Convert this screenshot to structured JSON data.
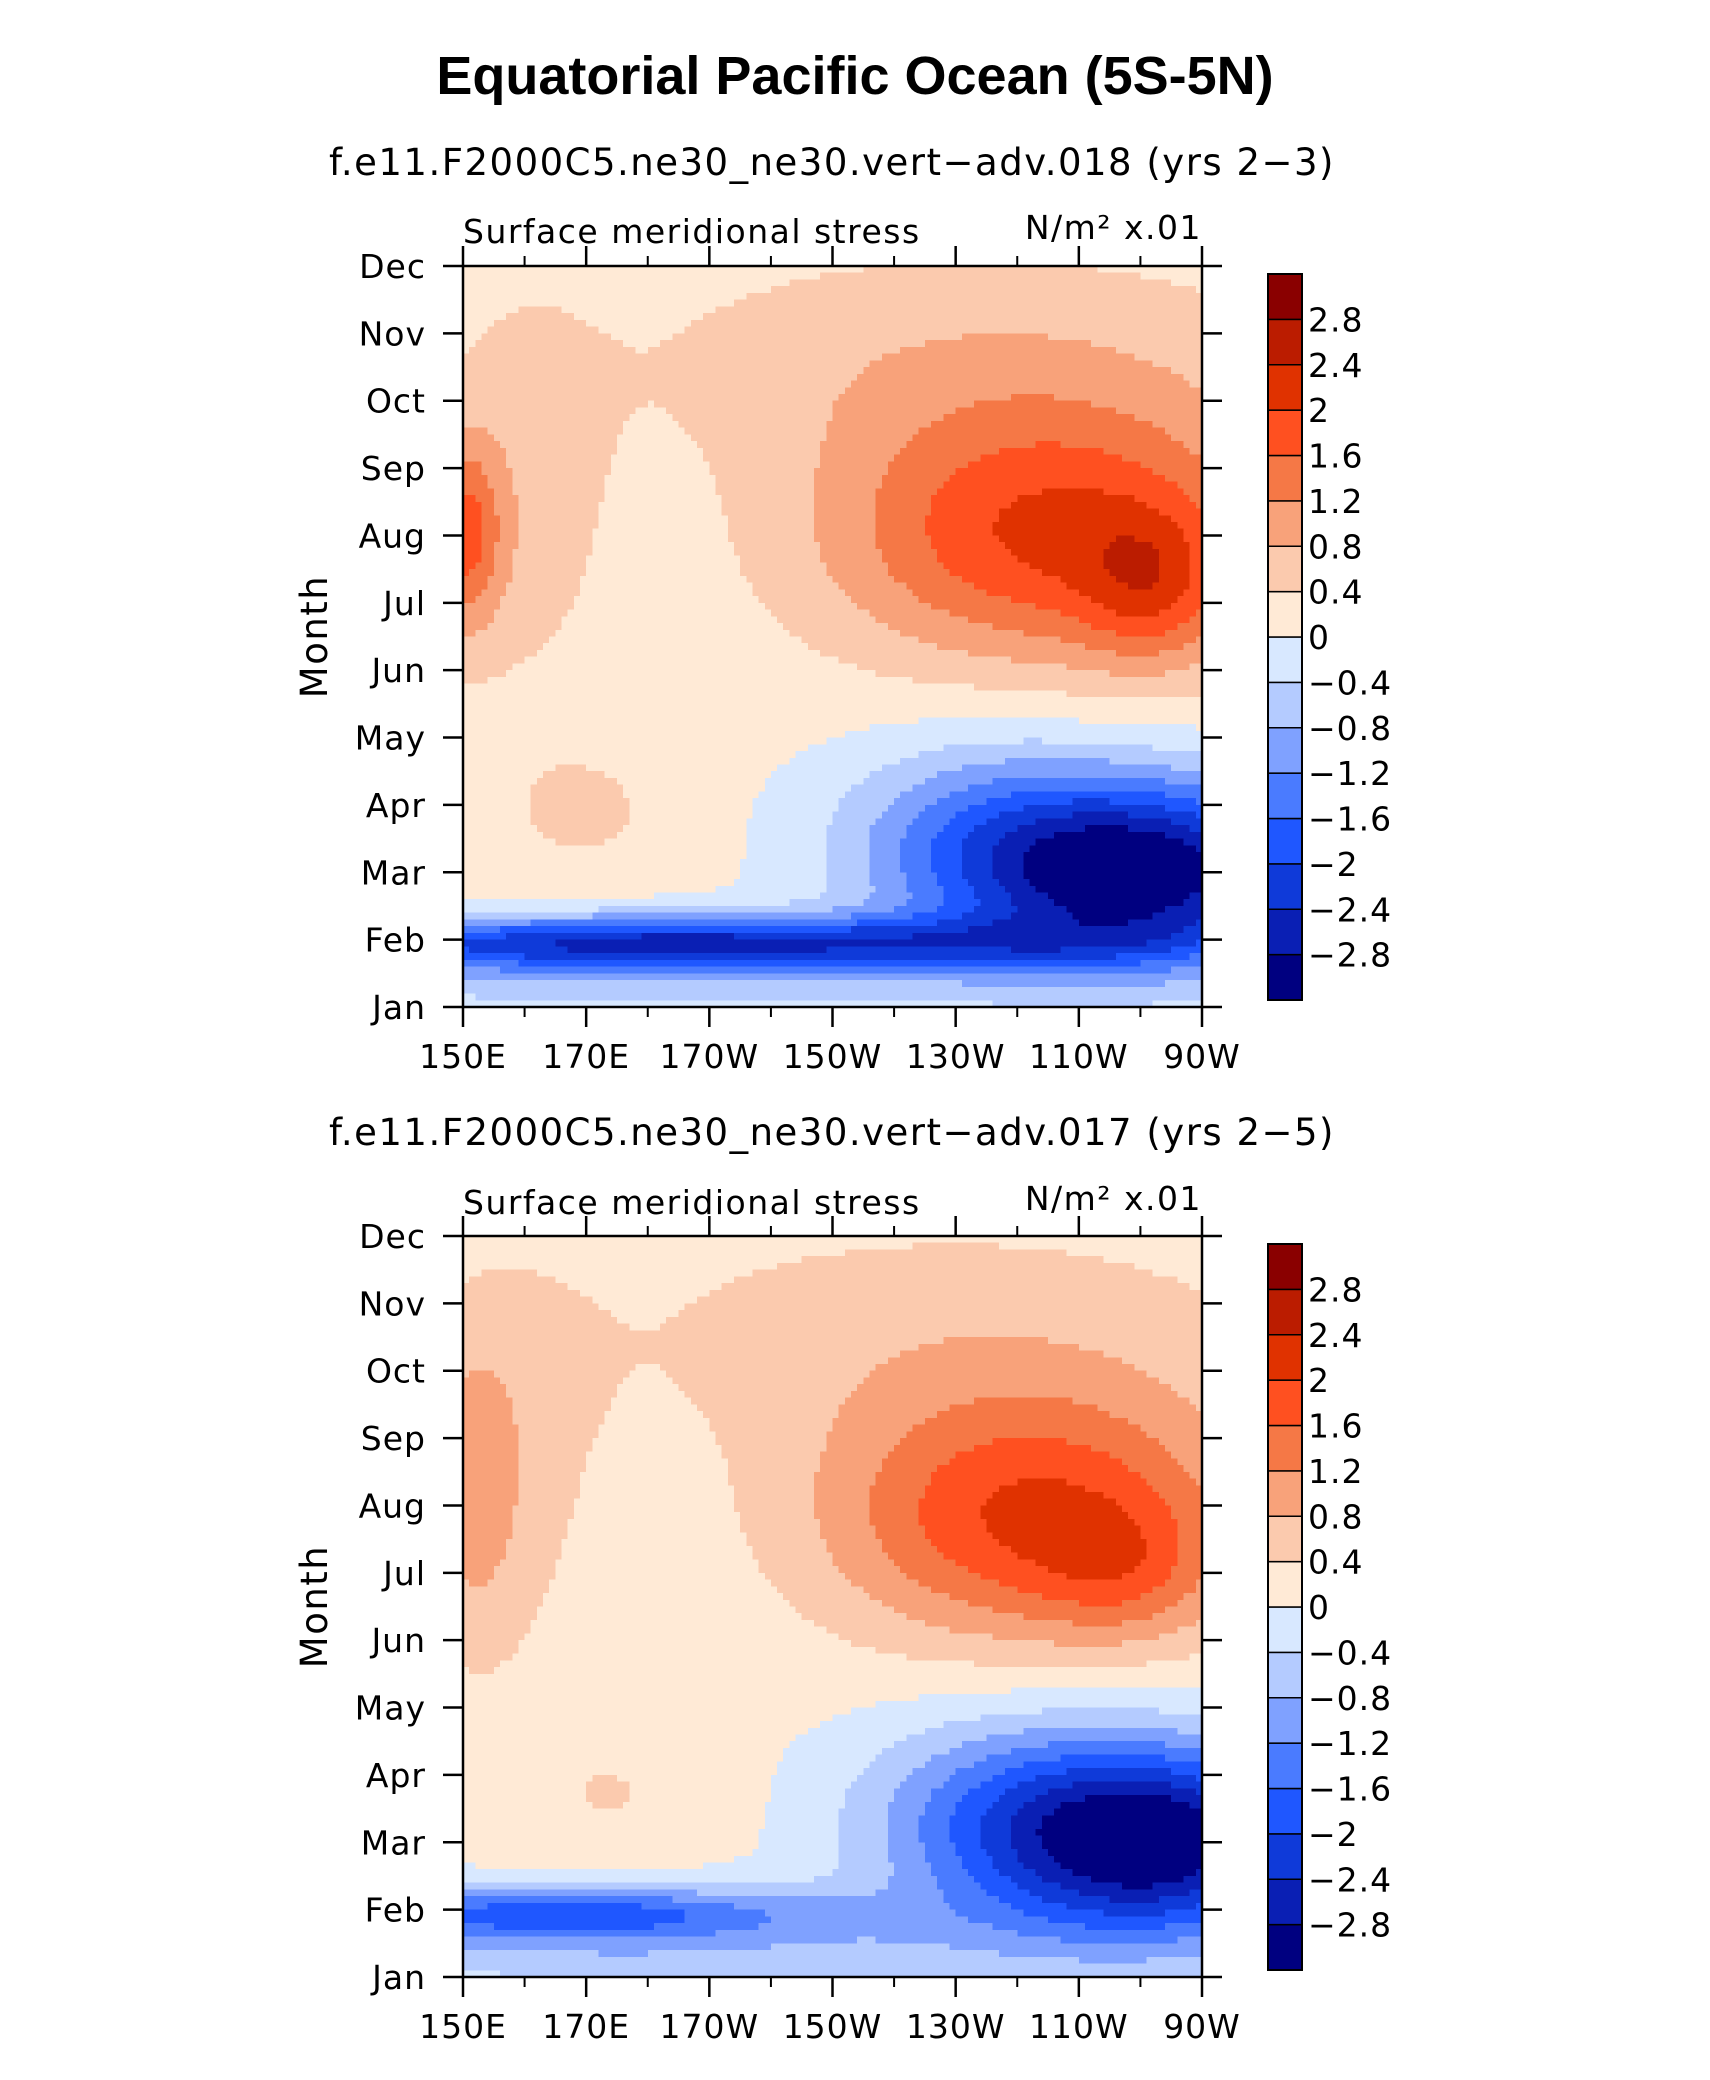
{
  "figure": {
    "title": "Equatorial Pacific Ocean (5S-5N)"
  },
  "chart_data": [
    {
      "type": "heatmap",
      "title": "f.e11.F2000C5.ne30_ne30.vert−adv.018 (yrs 2−3)",
      "subtitle_left": "Surface meridional stress",
      "units": "N/m² x.01",
      "xlabel": "",
      "ylabel": "Month",
      "x_ticks": [
        "150E",
        "170E",
        "170W",
        "150W",
        "130W",
        "110W",
        "90W"
      ],
      "y_ticks": [
        "Jan",
        "Feb",
        "Mar",
        "Apr",
        "May",
        "Jun",
        "Jul",
        "Aug",
        "Sep",
        "Oct",
        "Nov",
        "Dec"
      ],
      "xlim": [
        150,
        270
      ],
      "ylim": [
        1,
        12
      ],
      "levels": [
        "−2.8",
        "−2.4",
        "−2",
        "−1.6",
        "−1.2",
        "−0.8",
        "−0.4",
        "0",
        "0.4",
        "0.8",
        "1.2",
        "1.6",
        "2",
        "2.4",
        "2.8"
      ],
      "features": [
        {
          "name": "feb-negative-band",
          "month": 2.0,
          "lon_range": [
            150,
            220
          ],
          "value": -2.4
        },
        {
          "name": "mar-east-minimum",
          "month": 3.0,
          "lon": 263,
          "value": -3.0
        },
        {
          "name": "aug-east-maximum",
          "month": 8.0,
          "lon": 235,
          "value": 2.4
        },
        {
          "name": "jul-far-east-maximum",
          "month": 7.1,
          "lon": 266,
          "value": 2.4
        },
        {
          "name": "aug-west-positive",
          "month": 8.0,
          "lon": 150,
          "value": 1.6
        }
      ]
    },
    {
      "type": "heatmap",
      "title": "f.e11.F2000C5.ne30_ne30.vert−adv.017 (yrs 2−5)",
      "subtitle_left": "Surface meridional stress",
      "units": "N/m² x.01",
      "xlabel": "",
      "ylabel": "Month",
      "x_ticks": [
        "150E",
        "170E",
        "170W",
        "150W",
        "130W",
        "110W",
        "90W"
      ],
      "y_ticks": [
        "Jan",
        "Feb",
        "Mar",
        "Apr",
        "May",
        "Jun",
        "Jul",
        "Aug",
        "Sep",
        "Oct",
        "Nov",
        "Dec"
      ],
      "xlim": [
        150,
        270
      ],
      "ylim": [
        1,
        12
      ],
      "levels": [
        "−2.8",
        "−2.4",
        "−2",
        "−1.6",
        "−1.2",
        "−0.8",
        "−0.4",
        "0",
        "0.4",
        "0.8",
        "1.2",
        "1.6",
        "2",
        "2.4",
        "2.8"
      ],
      "features": [
        {
          "name": "feb-negative-band",
          "month": 2.0,
          "lon_range": [
            150,
            200
          ],
          "value": -1.8
        },
        {
          "name": "mar-east-minimum",
          "month": 3.0,
          "lon": 264,
          "value": -3.0
        },
        {
          "name": "aug-east-maximum",
          "month": 8.0,
          "lon": 233,
          "value": 2.4
        },
        {
          "name": "jul-east-maximum",
          "month": 7.1,
          "lon": 258,
          "value": 2.2
        },
        {
          "name": "aug-west-positive",
          "month": 8.0,
          "lon": 151,
          "value": 1.0
        }
      ]
    }
  ],
  "colorbar": {
    "colors": [
      "#000080",
      "#0a1fb4",
      "#0f3ad9",
      "#1f57ff",
      "#4a7bff",
      "#7fa1ff",
      "#b4cbff",
      "#d8e8ff",
      "#ffead6",
      "#fbcaae",
      "#f8a27a",
      "#f57846",
      "#ff5020",
      "#e03200",
      "#bb1c00",
      "#8a0000"
    ]
  }
}
